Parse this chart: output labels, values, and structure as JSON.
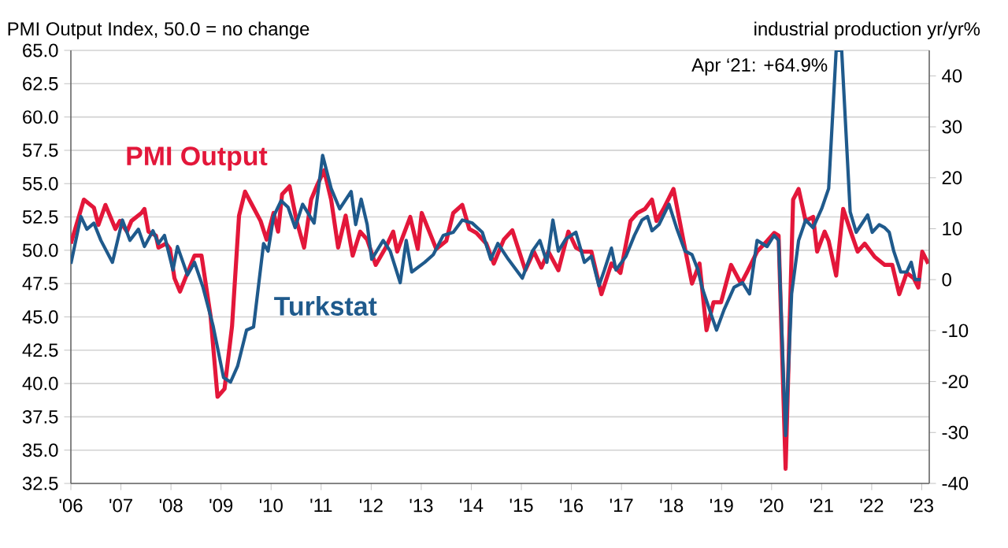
{
  "chart_data": {
    "type": "line",
    "ylabel": "PMI Output Index, 50.0 = no change",
    "y2label": "industrial production yr/yr%",
    "annotations": [
      "Apr ‘21: +64.9%"
    ],
    "xlim": [
      2006,
      2023.15
    ],
    "xticks": [
      {
        "value": 2006,
        "label": "'06"
      },
      {
        "value": 2007,
        "label": "'07"
      },
      {
        "value": 2008,
        "label": "'08"
      },
      {
        "value": 2009,
        "label": "'09"
      },
      {
        "value": 2010,
        "label": "'10"
      },
      {
        "value": 2011,
        "label": "'11"
      },
      {
        "value": 2012,
        "label": "'12"
      },
      {
        "value": 2013,
        "label": "'13"
      },
      {
        "value": 2014,
        "label": "'14"
      },
      {
        "value": 2015,
        "label": "'15"
      },
      {
        "value": 2016,
        "label": "'16"
      },
      {
        "value": 2017,
        "label": "'17"
      },
      {
        "value": 2018,
        "label": "'18"
      },
      {
        "value": 2019,
        "label": "'19"
      },
      {
        "value": 2020,
        "label": "'20"
      },
      {
        "value": 2021,
        "label": "'21"
      },
      {
        "value": 2022,
        "label": "'22"
      },
      {
        "value": 2023,
        "label": "'23"
      }
    ],
    "ylim": [
      32.5,
      65
    ],
    "yticks": [
      {
        "value": 32.5,
        "label": "32.5"
      },
      {
        "value": 35,
        "label": "35.0"
      },
      {
        "value": 37.5,
        "label": "37.5"
      },
      {
        "value": 40,
        "label": "40.0"
      },
      {
        "value": 42.5,
        "label": "42.5"
      },
      {
        "value": 45,
        "label": "45.0"
      },
      {
        "value": 47.5,
        "label": "47.5"
      },
      {
        "value": 50,
        "label": "50.0"
      },
      {
        "value": 52.5,
        "label": "52.5"
      },
      {
        "value": 55,
        "label": "55.0"
      },
      {
        "value": 57.5,
        "label": "57.5"
      },
      {
        "value": 60,
        "label": "60.0"
      },
      {
        "value": 62.5,
        "label": "62.5"
      },
      {
        "value": 65,
        "label": "65.0"
      }
    ],
    "y2lim": [
      -40,
      45
    ],
    "y2ticks": [
      -40,
      -30,
      -20,
      -10,
      0,
      10,
      20,
      30,
      40
    ],
    "grid": "y",
    "series": [
      {
        "name": "PMI Output",
        "color": "#e3173a",
        "x": [
          2006.0,
          2006.26,
          2006.46,
          2006.55,
          2006.69,
          2006.89,
          2006.98,
          2007.12,
          2007.21,
          2007.41,
          2007.47,
          2007.55,
          2007.7,
          2007.75,
          2007.9,
          2007.98,
          2008.07,
          2008.18,
          2008.33,
          2008.47,
          2008.61,
          2008.79,
          2008.93,
          2009.07,
          2009.22,
          2009.36,
          2009.48,
          2009.62,
          2009.79,
          2009.91,
          2010.05,
          2010.14,
          2010.22,
          2010.37,
          2010.51,
          2010.66,
          2010.8,
          2010.91,
          2011.06,
          2011.2,
          2011.34,
          2011.49,
          2011.63,
          2011.78,
          2011.92,
          2012.09,
          2012.29,
          2012.44,
          2012.52,
          2012.67,
          2012.78,
          2012.93,
          2013.01,
          2013.16,
          2013.3,
          2013.5,
          2013.64,
          2013.82,
          2013.96,
          2014.1,
          2014.3,
          2014.45,
          2014.65,
          2014.82,
          2015.08,
          2015.25,
          2015.4,
          2015.54,
          2015.74,
          2015.94,
          2016.09,
          2016.23,
          2016.4,
          2016.6,
          2016.8,
          2016.98,
          2017.18,
          2017.32,
          2017.47,
          2017.61,
          2017.7,
          2017.84,
          2018.04,
          2018.24,
          2018.41,
          2018.56,
          2018.7,
          2018.84,
          2018.99,
          2019.19,
          2019.39,
          2019.53,
          2019.71,
          2019.91,
          2020.05,
          2020.14,
          2020.28,
          2020.43,
          2020.54,
          2020.68,
          2020.83,
          2020.91,
          2021.06,
          2021.14,
          2021.29,
          2021.43,
          2021.58,
          2021.72,
          2021.86,
          2022.06,
          2022.26,
          2022.41,
          2022.55,
          2022.7,
          2022.84,
          2022.93,
          2023.01,
          2023.13
        ],
        "values": [
          50.5,
          53.8,
          53.2,
          51.9,
          53.4,
          51.6,
          52.2,
          51.4,
          52.2,
          52.8,
          53.1,
          51.4,
          51.1,
          50.2,
          50.5,
          50.1,
          47.9,
          46.9,
          48.3,
          49.6,
          49.6,
          45.1,
          39.0,
          39.6,
          44.3,
          52.6,
          54.4,
          53.4,
          52.2,
          50.8,
          52.8,
          51.4,
          54.2,
          54.8,
          52.2,
          50.2,
          53.8,
          54.8,
          56.0,
          53.8,
          50.2,
          52.6,
          49.6,
          51.4,
          50.8,
          48.9,
          50.2,
          51.4,
          49.9,
          51.4,
          52.5,
          50.1,
          52.8,
          51.4,
          50.1,
          50.7,
          52.8,
          53.4,
          51.6,
          51.3,
          50.5,
          49.0,
          50.8,
          51.5,
          48.5,
          49.9,
          48.7,
          49.9,
          48.5,
          51.4,
          50.2,
          49.9,
          49.9,
          46.7,
          49.0,
          48.3,
          52.2,
          52.8,
          53.1,
          53.8,
          52.2,
          53.1,
          54.6,
          50.7,
          47.5,
          49.0,
          44.0,
          46.1,
          46.1,
          48.9,
          47.5,
          48.5,
          49.9,
          50.7,
          51.3,
          51.1,
          33.6,
          53.8,
          54.6,
          52.2,
          52.5,
          49.9,
          51.4,
          50.7,
          48.1,
          53.1,
          51.4,
          49.9,
          50.5,
          49.5,
          48.9,
          48.9,
          46.7,
          48.3,
          47.9,
          47.2,
          49.9,
          49.0
        ]
      },
      {
        "name": "Turkstat",
        "color": "#1f5a8c",
        "axis": "y2",
        "x": [
          2006.0,
          2006.2,
          2006.32,
          2006.46,
          2006.6,
          2006.83,
          2007.03,
          2007.18,
          2007.35,
          2007.47,
          2007.64,
          2007.75,
          2007.87,
          2008.04,
          2008.13,
          2008.33,
          2008.47,
          2008.64,
          2008.84,
          2009.05,
          2009.19,
          2009.33,
          2009.51,
          2009.65,
          2009.85,
          2009.94,
          2010.05,
          2010.2,
          2010.34,
          2010.48,
          2010.63,
          2010.86,
          2011.03,
          2011.2,
          2011.37,
          2011.6,
          2011.69,
          2011.8,
          2011.92,
          2012.01,
          2012.24,
          2012.38,
          2012.58,
          2012.7,
          2012.81,
          2013.07,
          2013.24,
          2013.44,
          2013.64,
          2013.82,
          2014.02,
          2014.22,
          2014.39,
          2014.53,
          2014.74,
          2015.02,
          2015.22,
          2015.37,
          2015.51,
          2015.63,
          2015.74,
          2015.89,
          2016.09,
          2016.26,
          2016.4,
          2016.55,
          2016.66,
          2016.8,
          2016.89,
          2017.09,
          2017.26,
          2017.41,
          2017.52,
          2017.61,
          2017.75,
          2017.95,
          2018.1,
          2018.27,
          2018.41,
          2018.53,
          2018.61,
          2018.76,
          2018.9,
          2019.05,
          2019.25,
          2019.42,
          2019.56,
          2019.71,
          2019.91,
          2020.05,
          2020.14,
          2020.28,
          2020.4,
          2020.54,
          2020.68,
          2020.83,
          2021.0,
          2021.14,
          2021.29,
          2021.4,
          2021.57,
          2021.69,
          2021.92,
          2022.01,
          2022.15,
          2022.26,
          2022.35,
          2022.44,
          2022.58,
          2022.7,
          2022.79,
          2022.87,
          2022.98
        ],
        "values": [
          3.1,
          12.4,
          9.9,
          11.1,
          7.7,
          3.4,
          11.7,
          7.7,
          9.9,
          6.5,
          9.6,
          7.1,
          8.7,
          1.9,
          6.5,
          0.9,
          3.4,
          -1.5,
          -9.0,
          -19.2,
          -20.1,
          -17.0,
          -9.9,
          -9.3,
          7.1,
          5.6,
          12.4,
          15.5,
          14.2,
          10.2,
          14.8,
          11.1,
          24.4,
          17.9,
          13.9,
          17.3,
          10.8,
          15.8,
          10.8,
          4.0,
          7.7,
          5.6,
          -0.6,
          7.7,
          1.5,
          3.4,
          4.9,
          8.7,
          9.3,
          11.7,
          11.1,
          9.3,
          4.0,
          7.1,
          4.0,
          0.3,
          5.6,
          7.7,
          3.4,
          11.7,
          5.6,
          8.0,
          9.3,
          3.4,
          4.6,
          -1.2,
          1.9,
          6.2,
          1.9,
          4.6,
          8.7,
          11.7,
          12.4,
          9.6,
          10.8,
          14.8,
          10.2,
          5.6,
          4.9,
          1.9,
          -1.5,
          -5.9,
          -9.9,
          -5.9,
          -1.5,
          -0.6,
          -2.8,
          7.7,
          6.5,
          8.7,
          7.7,
          -30.6,
          -2.8,
          7.7,
          11.7,
          10.2,
          13.9,
          17.9,
          45,
          45,
          13.3,
          9.3,
          12.7,
          9.3,
          10.8,
          10.2,
          9.3,
          5.6,
          1.5,
          1.5,
          3.4,
          0.0,
          0.0
        ]
      }
    ]
  }
}
